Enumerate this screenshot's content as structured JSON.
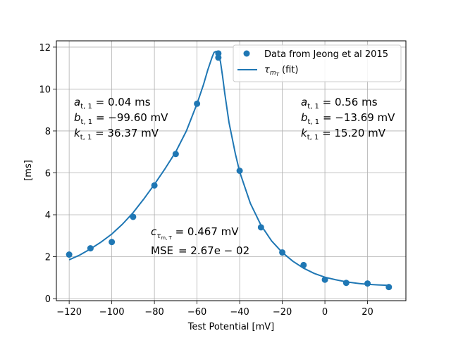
{
  "chart_data": {
    "type": "scatter",
    "xlabel": "Test Potential [mV]",
    "ylabel": "[ms]",
    "xlim": [
      -126,
      38
    ],
    "ylim": [
      -0.1,
      12.3
    ],
    "grid": true,
    "legend_position": "top-right",
    "x_ticks": [
      -120,
      -100,
      -80,
      -60,
      -40,
      -20,
      0,
      20
    ],
    "x_tick_labels": [
      "−120",
      "−100",
      "−80",
      "−60",
      "−40",
      "−20",
      "0",
      "20"
    ],
    "y_ticks": [
      0,
      2,
      4,
      6,
      8,
      10,
      12
    ],
    "y_tick_labels": [
      "0",
      "2",
      "4",
      "6",
      "8",
      "10",
      "12"
    ],
    "series": [
      {
        "name": "Data from Jeong et al 2015",
        "kind": "scatter",
        "color": "#1f77b4",
        "points": [
          [
            -120,
            2.1
          ],
          [
            -110,
            2.4
          ],
          [
            -100,
            2.7
          ],
          [
            -90,
            3.9
          ],
          [
            -80,
            5.4
          ],
          [
            -70,
            6.9
          ],
          [
            -60,
            9.3
          ],
          [
            -50,
            11.7
          ],
          [
            -50,
            11.5
          ],
          [
            -40,
            6.1
          ],
          [
            -30,
            3.4
          ],
          [
            -20,
            2.2
          ],
          [
            -10,
            1.6
          ],
          [
            0,
            0.9
          ],
          [
            10,
            0.75
          ],
          [
            20,
            0.72
          ],
          [
            30,
            0.55
          ]
        ]
      },
      {
        "name": "τ_{m_T} (fit)",
        "kind": "line",
        "color": "#1f77b4",
        "points": [
          [
            -120,
            1.85
          ],
          [
            -115,
            2.08
          ],
          [
            -110,
            2.37
          ],
          [
            -105,
            2.7
          ],
          [
            -100,
            3.08
          ],
          [
            -95,
            3.55
          ],
          [
            -90,
            4.1
          ],
          [
            -85,
            4.75
          ],
          [
            -80,
            5.45
          ],
          [
            -75,
            6.2
          ],
          [
            -70,
            7.0
          ],
          [
            -65,
            8.0
          ],
          [
            -60,
            9.3
          ],
          [
            -57,
            10.2
          ],
          [
            -55,
            10.9
          ],
          [
            -53,
            11.5
          ],
          [
            -52,
            11.75
          ],
          [
            -51,
            11.8
          ],
          [
            -50,
            11.7
          ],
          [
            -49,
            11.3
          ],
          [
            -48,
            10.6
          ],
          [
            -47,
            9.8
          ],
          [
            -45,
            8.4
          ],
          [
            -42,
            6.9
          ],
          [
            -40,
            6.05
          ],
          [
            -35,
            4.55
          ],
          [
            -30,
            3.5
          ],
          [
            -25,
            2.75
          ],
          [
            -20,
            2.2
          ],
          [
            -15,
            1.78
          ],
          [
            -10,
            1.45
          ],
          [
            -5,
            1.2
          ],
          [
            0,
            1.02
          ],
          [
            5,
            0.9
          ],
          [
            10,
            0.8
          ],
          [
            15,
            0.73
          ],
          [
            20,
            0.68
          ],
          [
            25,
            0.65
          ],
          [
            30,
            0.63
          ]
        ]
      }
    ],
    "legend": {
      "scatter_label": "Data from Jeong et al 2015",
      "line_symbol": "τ",
      "line_sub": "m",
      "line_subsub": "T",
      "line_rest": " (fit)"
    },
    "annotations": {
      "left": [
        {
          "sym": "a",
          "sub": "t, 1",
          "rest": " = 0.04 ms"
        },
        {
          "sym": "b",
          "sub": "t, 1",
          "rest": " = −99.60 mV"
        },
        {
          "sym": "k",
          "sub": "t, 1",
          "rest": " = 36.37 mV"
        }
      ],
      "right": [
        {
          "sym": "a",
          "sub": "t, 1",
          "rest": " = 0.56 ms"
        },
        {
          "sym": "b",
          "sub": "t, 1",
          "rest": " = −13.69 mV"
        },
        {
          "sym": "k",
          "sub": "t, 1",
          "rest": " = 15.20 mV"
        }
      ],
      "c_sym": "c",
      "c_sub": "τ",
      "c_subsub": "m, T",
      "c_rest": " = 0.467 mV",
      "mse_label": "MSE",
      "mse_value": "= 2.67e − 02"
    }
  }
}
